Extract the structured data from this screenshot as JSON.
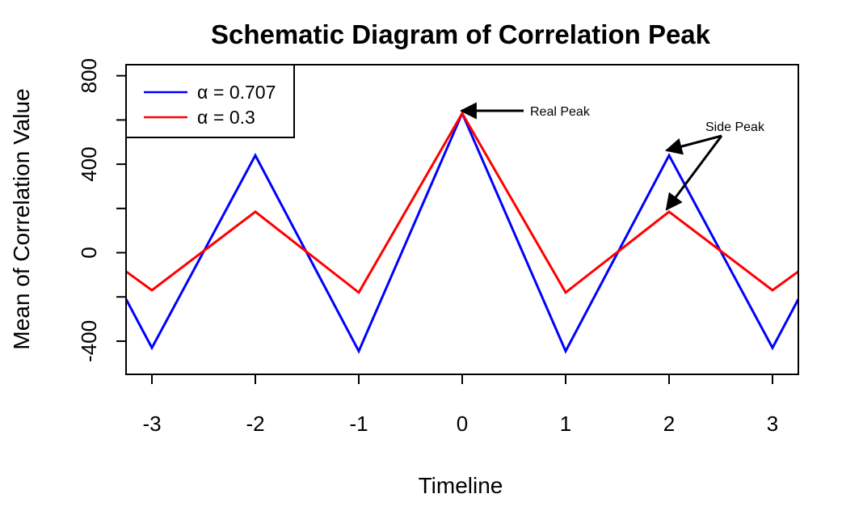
{
  "chart_data": {
    "type": "line",
    "title": "Schematic Diagram of Correlation Peak",
    "xlabel": "Timeline",
    "ylabel": "Mean of Correlation Value",
    "xlim": [
      -3.25,
      3.25
    ],
    "ylim": [
      -550,
      850
    ],
    "xticks": [
      -3,
      -2,
      -1,
      0,
      1,
      2,
      3
    ],
    "xtick_labels": [
      "-3",
      "-2",
      "-1",
      "0",
      "1",
      "2",
      "3"
    ],
    "yticks": [
      -400,
      -200,
      0,
      200,
      400,
      600,
      800
    ],
    "ytick_labels": [
      "-400",
      "",
      "0",
      "",
      "400",
      "",
      "800"
    ],
    "legend_position": "top-left",
    "series": [
      {
        "name": "α = 0.707",
        "symbol": "α",
        "value_text": "= 0.707",
        "color": "#0000ff",
        "x": [
          -3.25,
          -3,
          -2,
          -1,
          0,
          1,
          2,
          3,
          3.25
        ],
        "y": [
          -210,
          -430,
          440,
          -445,
          630,
          -445,
          440,
          -430,
          -210
        ]
      },
      {
        "name": "α = 0.3",
        "symbol": "α",
        "value_text": "= 0.3",
        "color": "#ff0000",
        "x": [
          -3.25,
          -3,
          -2,
          -1,
          0,
          1,
          2,
          3,
          3.25
        ],
        "y": [
          -85,
          -170,
          185,
          -180,
          630,
          -180,
          185,
          -170,
          -85
        ]
      }
    ],
    "annotations": [
      {
        "text": "Real Peak",
        "targets": [
          {
            "x": 0,
            "y": 630
          }
        ]
      },
      {
        "text": "Side Peak",
        "targets": [
          {
            "x": 2,
            "y": 440
          },
          {
            "x": 2,
            "y": 185
          }
        ]
      }
    ]
  }
}
